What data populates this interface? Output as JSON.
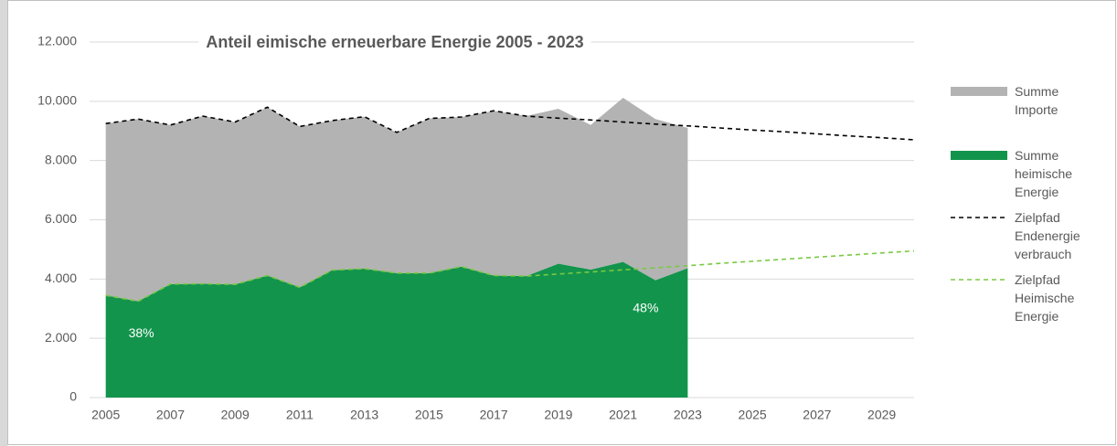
{
  "chart_data": {
    "type": "stacked_area",
    "title": "Anteil eimische erneuerbare Energie 2005 - 2023",
    "x": [
      2005,
      2006,
      2007,
      2008,
      2009,
      2010,
      2011,
      2012,
      2013,
      2014,
      2015,
      2016,
      2017,
      2018,
      2019,
      2020,
      2021,
      2022,
      2023,
      2024,
      2025,
      2026,
      2027,
      2028,
      2029,
      2030
    ],
    "xlim": [
      2004.5,
      2030
    ],
    "xticks": [
      2005,
      2007,
      2009,
      2011,
      2013,
      2015,
      2017,
      2019,
      2021,
      2023,
      2025,
      2027,
      2029
    ],
    "ylim": [
      0,
      12000
    ],
    "yticks": [
      0,
      {
        "value": 2000,
        "label": "2.000"
      },
      {
        "value": 4000,
        "label": "4.000"
      },
      {
        "value": 6000,
        "label": "6.000"
      },
      {
        "value": 8000,
        "label": "8.000"
      },
      {
        "value": 10000,
        "label": "10.000"
      },
      {
        "value": 12000,
        "label": "12.000"
      }
    ],
    "grid": true,
    "series": [
      {
        "name": "Summe heimische Energie",
        "color": "#13944c",
        "kind": "area",
        "values": [
          3450,
          3250,
          3830,
          3840,
          3820,
          4120,
          3720,
          4300,
          4350,
          4200,
          4200,
          4420,
          4120,
          4100,
          4520,
          4320,
          4580,
          3960,
          4370,
          null,
          null,
          null,
          null,
          null,
          null,
          null
        ]
      },
      {
        "name": "Summe Importe",
        "color": "#b3b3b3",
        "kind": "area",
        "values": [
          5800,
          6150,
          5370,
          5660,
          5480,
          5680,
          5430,
          5050,
          5130,
          4750,
          5220,
          5050,
          5560,
          5400,
          5230,
          4880,
          5540,
          5440,
          4730,
          null,
          null,
          null,
          null,
          null,
          null,
          null
        ]
      },
      {
        "name": "Zielpfad Endenergie verbrauch",
        "color": "#000000",
        "kind": "dashed",
        "values": [
          9250,
          9400,
          9200,
          9500,
          9300,
          9800,
          9150,
          9350,
          9480,
          8950,
          9420,
          9470,
          9680,
          9500,
          9430,
          9370,
          9300,
          9230,
          9170,
          9100,
          9030,
          8970,
          8900,
          8830,
          8770,
          8700
        ]
      },
      {
        "name": "Zielpfad Heimische Energie",
        "color": "#7ac943",
        "kind": "dashed",
        "values": [
          3450,
          3250,
          3830,
          3840,
          3820,
          4120,
          3720,
          4300,
          4350,
          4200,
          4200,
          4420,
          4120,
          4100,
          4170,
          4240,
          4310,
          4380,
          4450,
          4530,
          4600,
          4670,
          4740,
          4810,
          4880,
          4950
        ]
      }
    ],
    "annotations": [
      {
        "text": "38%",
        "x": 2006.1,
        "y": 2150
      },
      {
        "text": "48%",
        "x": 2021.7,
        "y": 3000
      }
    ]
  }
}
